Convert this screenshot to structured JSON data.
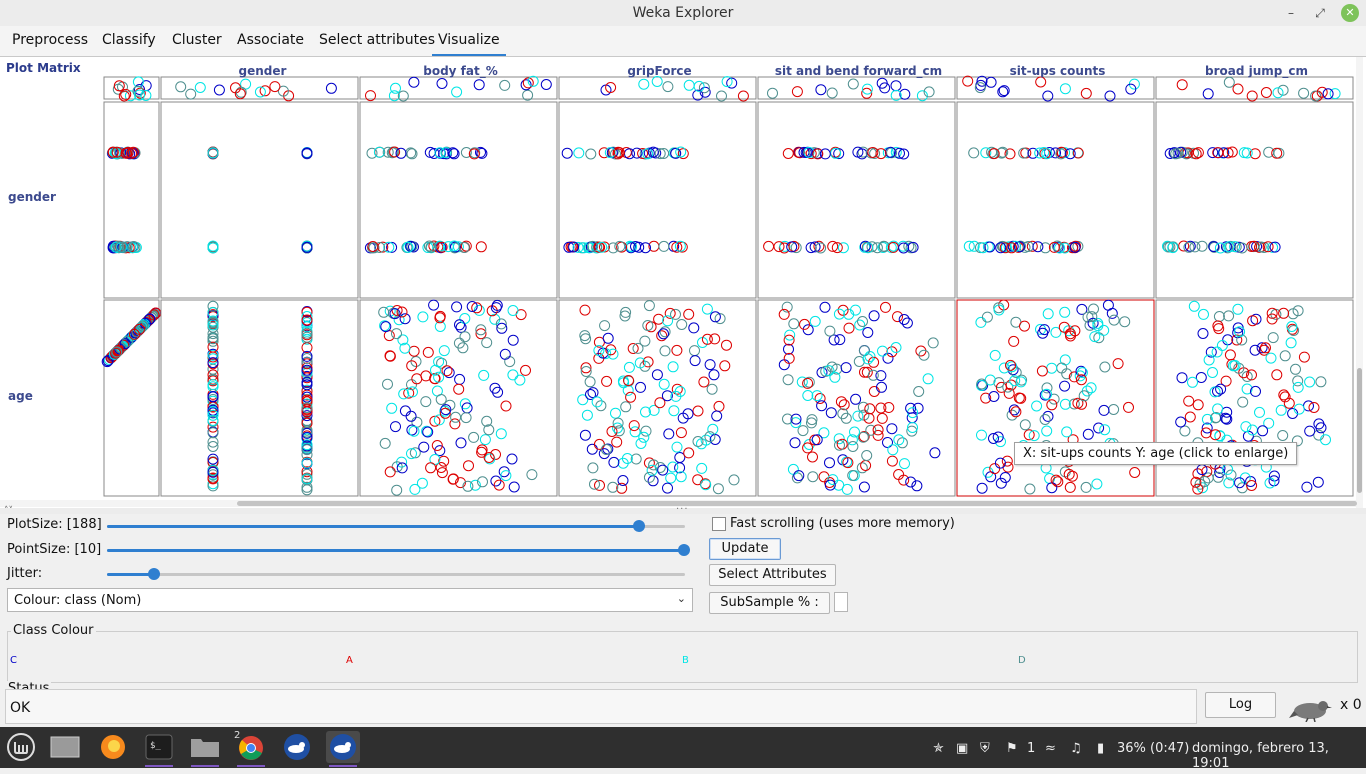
{
  "window": {
    "title": "Weka Explorer"
  },
  "tabs": [
    {
      "label": "Preprocess"
    },
    {
      "label": "Classify"
    },
    {
      "label": "Cluster"
    },
    {
      "label": "Associate"
    },
    {
      "label": "Select attributes"
    },
    {
      "label": "Visualize",
      "active": true
    }
  ],
  "plot_matrix": {
    "label": "Plot Matrix",
    "columns": [
      "gender",
      "body fat_%",
      "gripForce",
      "sit and bend forward_cm",
      "sit-ups counts",
      "broad jump_cm"
    ],
    "rows": [
      "gender",
      "age"
    ],
    "tooltip": "X: sit-ups counts Y: age (click to enlarge)",
    "point_colors": {
      "C": "#0000c8",
      "A": "#dd0000",
      "B": "#00e5e5",
      "D": "#4f8f8f"
    }
  },
  "controls": {
    "plot_size_label": "PlotSize: [188]",
    "plot_size_value": 188,
    "point_size_label": "PointSize: [10]",
    "point_size_value": 10,
    "jitter_label": "Jitter:",
    "colour_select": "Colour: class  (Nom)",
    "fast_scrolling_label": "Fast scrolling (uses more memory)",
    "update_label": "Update",
    "select_attributes_label": "Select Attributes",
    "subsample_label": "SubSample % :"
  },
  "class_colour": {
    "title": "Class Colour",
    "classes": [
      {
        "name": "C",
        "color": "#0000c8"
      },
      {
        "name": "A",
        "color": "#dd0000"
      },
      {
        "name": "B",
        "color": "#00e5e5"
      },
      {
        "name": "D",
        "color": "#4f8f8f"
      }
    ]
  },
  "status": {
    "title": "Status",
    "text": "OK",
    "log_label": "Log",
    "count": "x 0"
  },
  "taskbar": {
    "chrome_badge": "2",
    "notification_count": "1",
    "battery": "36% (0:47)",
    "datetime": "domingo, febrero 13, 19:01"
  }
}
